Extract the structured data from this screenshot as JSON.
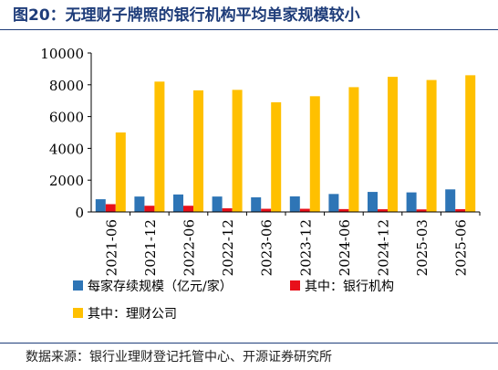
{
  "title": "图20：无理财子牌照的银行机构平均单家规模较小",
  "source": "数据来源：银行业理财登记托管中心、开源证券研究所",
  "chart_data": {
    "type": "bar",
    "categories": [
      "2021-06",
      "2021-12",
      "2022-06",
      "2022-12",
      "2023-06",
      "2023-12",
      "2024-06",
      "2024-12",
      "2025-03",
      "2025-06"
    ],
    "series": [
      {
        "name": "每家存续规模（亿元/家）",
        "color": "#2e75b6",
        "values": [
          800,
          970,
          1100,
          970,
          920,
          980,
          1130,
          1260,
          1230,
          1420
        ]
      },
      {
        "name": "其中：银行机构",
        "color": "#e8101a",
        "values": [
          490,
          390,
          390,
          230,
          200,
          200,
          180,
          170,
          160,
          175
        ]
      },
      {
        "name": "其中：理财公司",
        "color": "#ffc000",
        "values": [
          5000,
          8200,
          7650,
          7680,
          6900,
          7280,
          7850,
          8500,
          8300,
          8600
        ]
      }
    ],
    "yticks": [
      "0",
      "2000",
      "4000",
      "6000",
      "8000",
      "10000"
    ],
    "ylim": [
      0,
      10000
    ],
    "grid": false,
    "legend_position": "bottom"
  }
}
